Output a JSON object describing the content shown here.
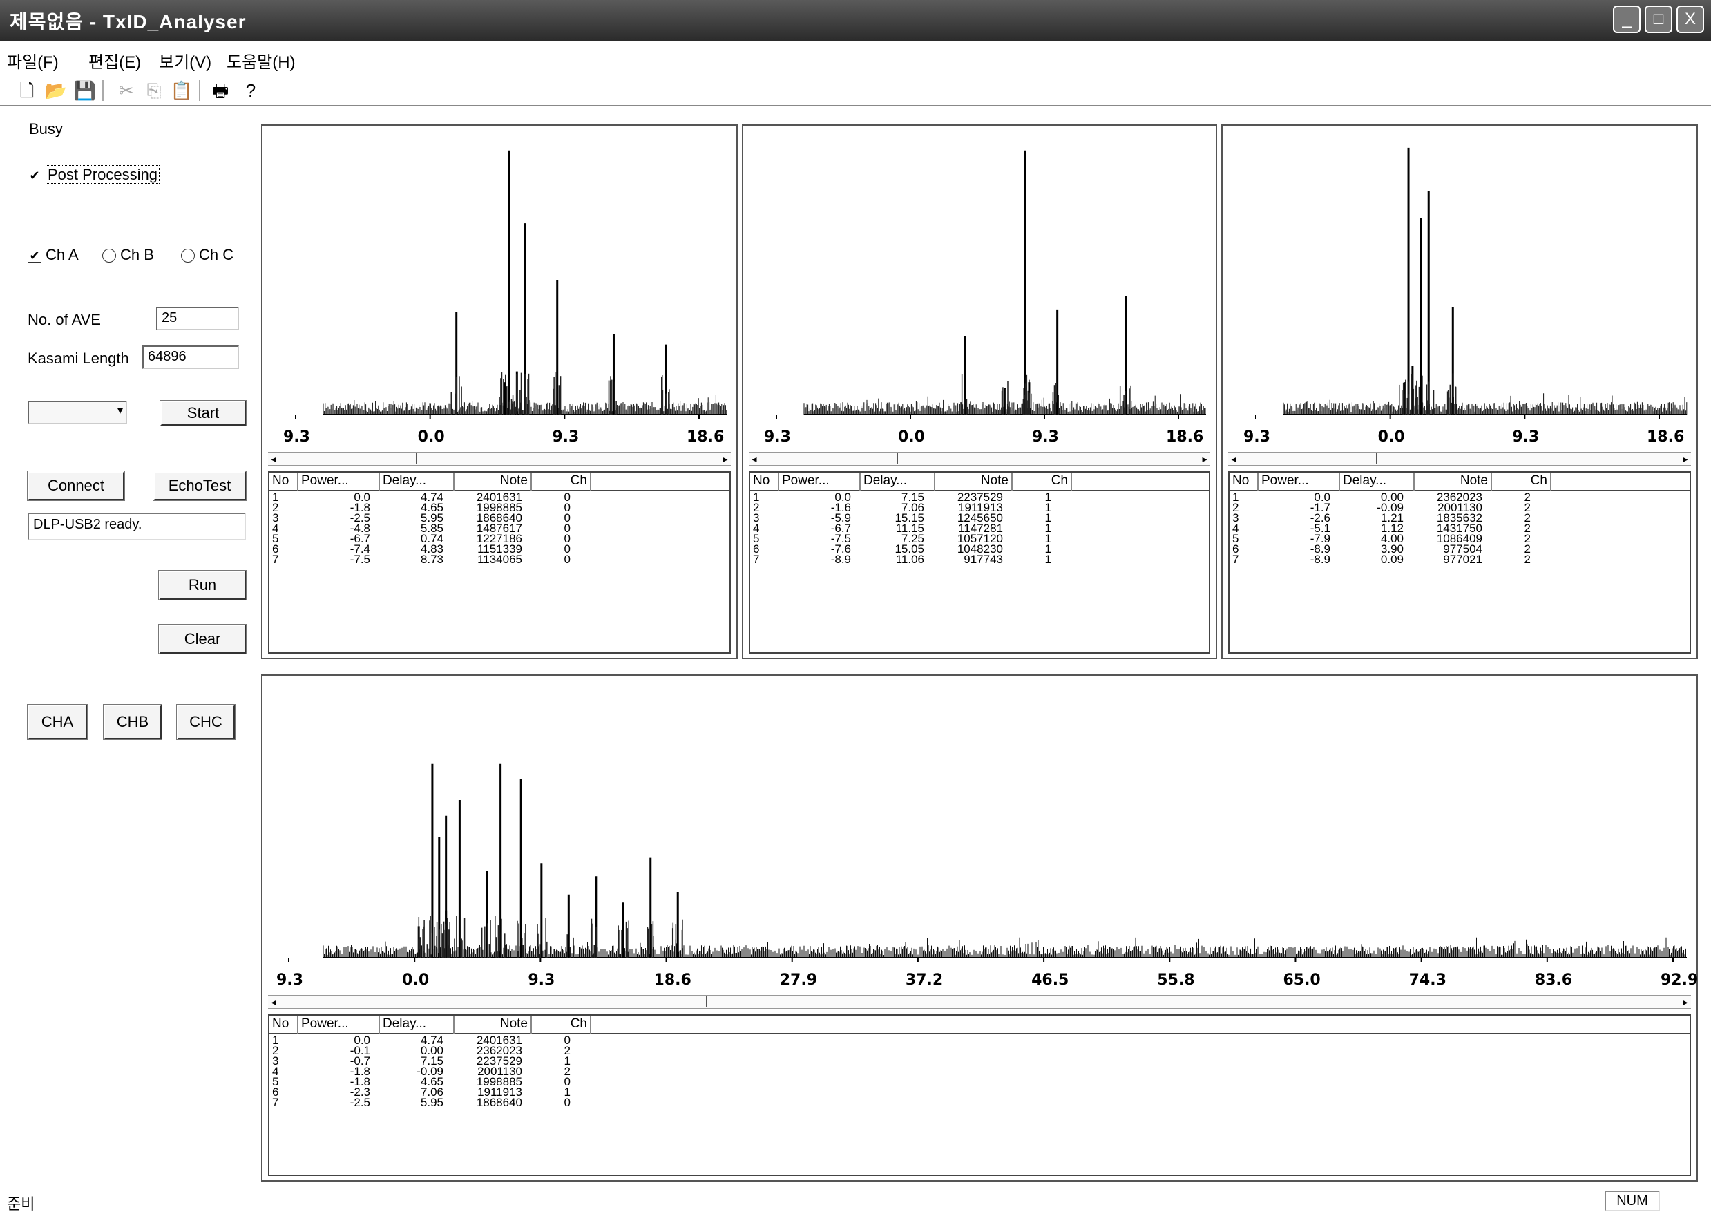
{
  "window": {
    "title": "제목없음 - TxID_Analyser",
    "controls": [
      "_",
      "□",
      "X"
    ]
  },
  "menu": [
    {
      "label": "파일(F)"
    },
    {
      "label": "편집(E)"
    },
    {
      "label": "보기(V)"
    },
    {
      "label": "도움말(H)"
    }
  ],
  "toolbar": [
    {
      "name": "new-file-icon",
      "glyph": "🗋",
      "enabled": true
    },
    {
      "name": "open-folder-icon",
      "glyph": "📂",
      "enabled": true
    },
    {
      "name": "save-icon",
      "glyph": "💾",
      "enabled": true
    },
    {
      "name": "cut-icon",
      "glyph": "✂",
      "enabled": false
    },
    {
      "name": "copy-icon",
      "glyph": "⎘",
      "enabled": false
    },
    {
      "name": "paste-icon",
      "glyph": "📋",
      "enabled": false
    },
    {
      "name": "print-icon",
      "glyph": "🖶",
      "enabled": true
    },
    {
      "name": "help-icon",
      "glyph": "?",
      "enabled": true
    }
  ],
  "left": {
    "status": "Busy",
    "post_processing": {
      "label": "Post Processing",
      "checked": true
    },
    "channels": [
      {
        "label": "Ch A",
        "type": "checkbox",
        "checked": true
      },
      {
        "label": "Ch B",
        "type": "radio",
        "checked": false
      },
      {
        "label": "Ch C",
        "type": "radio",
        "checked": false
      }
    ],
    "ave": {
      "label": "No. of AVE",
      "value": "25"
    },
    "kasami": {
      "label": "Kasami Length",
      "value": "64896"
    },
    "select_value": "",
    "start_label": "Start",
    "connect_label": "Connect",
    "echotest_label": "EchoTest",
    "log_text": "DLP-USB2 ready.",
    "run_label": "Run",
    "clear_label": "Clear",
    "ch_buttons": [
      "CHA",
      "CHB",
      "CHC"
    ]
  },
  "list_headers": [
    "No",
    "Power...",
    "Delay...",
    "Note",
    "Ch"
  ],
  "panels": [
    {
      "name": "channel-a",
      "axis_ticks": [
        "9.3",
        "0.0",
        "9.3",
        "18.6"
      ],
      "rows": [
        [
          "1",
          "0.0",
          "4.74",
          "2401631",
          "0"
        ],
        [
          "2",
          "-1.8",
          "4.65",
          "1998885",
          "0"
        ],
        [
          "3",
          "-2.5",
          "5.95",
          "1868640",
          "0"
        ],
        [
          "4",
          "-4.8",
          "5.85",
          "1487617",
          "0"
        ],
        [
          "5",
          "-6.7",
          "0.74",
          "1227186",
          "0"
        ],
        [
          "6",
          "-7.4",
          "4.83",
          "1151339",
          "0"
        ],
        [
          "7",
          "-7.5",
          "8.73",
          "1134065",
          "0"
        ]
      ]
    },
    {
      "name": "channel-b",
      "axis_ticks": [
        "9.3",
        "0.0",
        "9.3",
        "18.6"
      ],
      "rows": [
        [
          "1",
          "0.0",
          "7.15",
          "2237529",
          "1"
        ],
        [
          "2",
          "-1.6",
          "7.06",
          "1911913",
          "1"
        ],
        [
          "3",
          "-5.9",
          "15.15",
          "1245650",
          "1"
        ],
        [
          "4",
          "-6.7",
          "11.15",
          "1147281",
          "1"
        ],
        [
          "5",
          "-7.5",
          "7.25",
          "1057120",
          "1"
        ],
        [
          "6",
          "-7.6",
          "15.05",
          "1048230",
          "1"
        ],
        [
          "7",
          "-8.9",
          "11.06",
          "917743",
          "1"
        ]
      ]
    },
    {
      "name": "channel-c",
      "axis_ticks": [
        "9.3",
        "0.0",
        "9.3",
        "18.6"
      ],
      "rows": [
        [
          "1",
          "0.0",
          "0.00",
          "2362023",
          "2"
        ],
        [
          "2",
          "-1.7",
          "-0.09",
          "2001130",
          "2"
        ],
        [
          "3",
          "-2.6",
          "1.21",
          "1835632",
          "2"
        ],
        [
          "4",
          "-5.1",
          "1.12",
          "1431750",
          "2"
        ],
        [
          "5",
          "-7.9",
          "4.00",
          "1086409",
          "2"
        ],
        [
          "6",
          "-8.9",
          "3.90",
          "977504",
          "2"
        ],
        [
          "7",
          "-8.9",
          "0.09",
          "977021",
          "2"
        ]
      ]
    },
    {
      "name": "combined",
      "axis_ticks": [
        "9.3",
        "0.0",
        "9.3",
        "18.6",
        "27.9",
        "37.2",
        "46.5",
        "55.8",
        "65.0",
        "74.3",
        "83.6",
        "92.9"
      ],
      "rows": [
        [
          "1",
          "0.0",
          "4.74",
          "2401631",
          "0"
        ],
        [
          "2",
          "-0.1",
          "0.00",
          "2362023",
          "2"
        ],
        [
          "3",
          "-0.7",
          "7.15",
          "2237529",
          "1"
        ],
        [
          "4",
          "-1.8",
          "-0.09",
          "2001130",
          "2"
        ],
        [
          "5",
          "-1.8",
          "4.65",
          "1998885",
          "0"
        ],
        [
          "6",
          "-2.3",
          "7.06",
          "1911913",
          "1"
        ],
        [
          "7",
          "-2.5",
          "5.95",
          "1868640",
          "0"
        ]
      ]
    }
  ],
  "statusbar": {
    "text": "준비",
    "num": "NUM"
  }
}
